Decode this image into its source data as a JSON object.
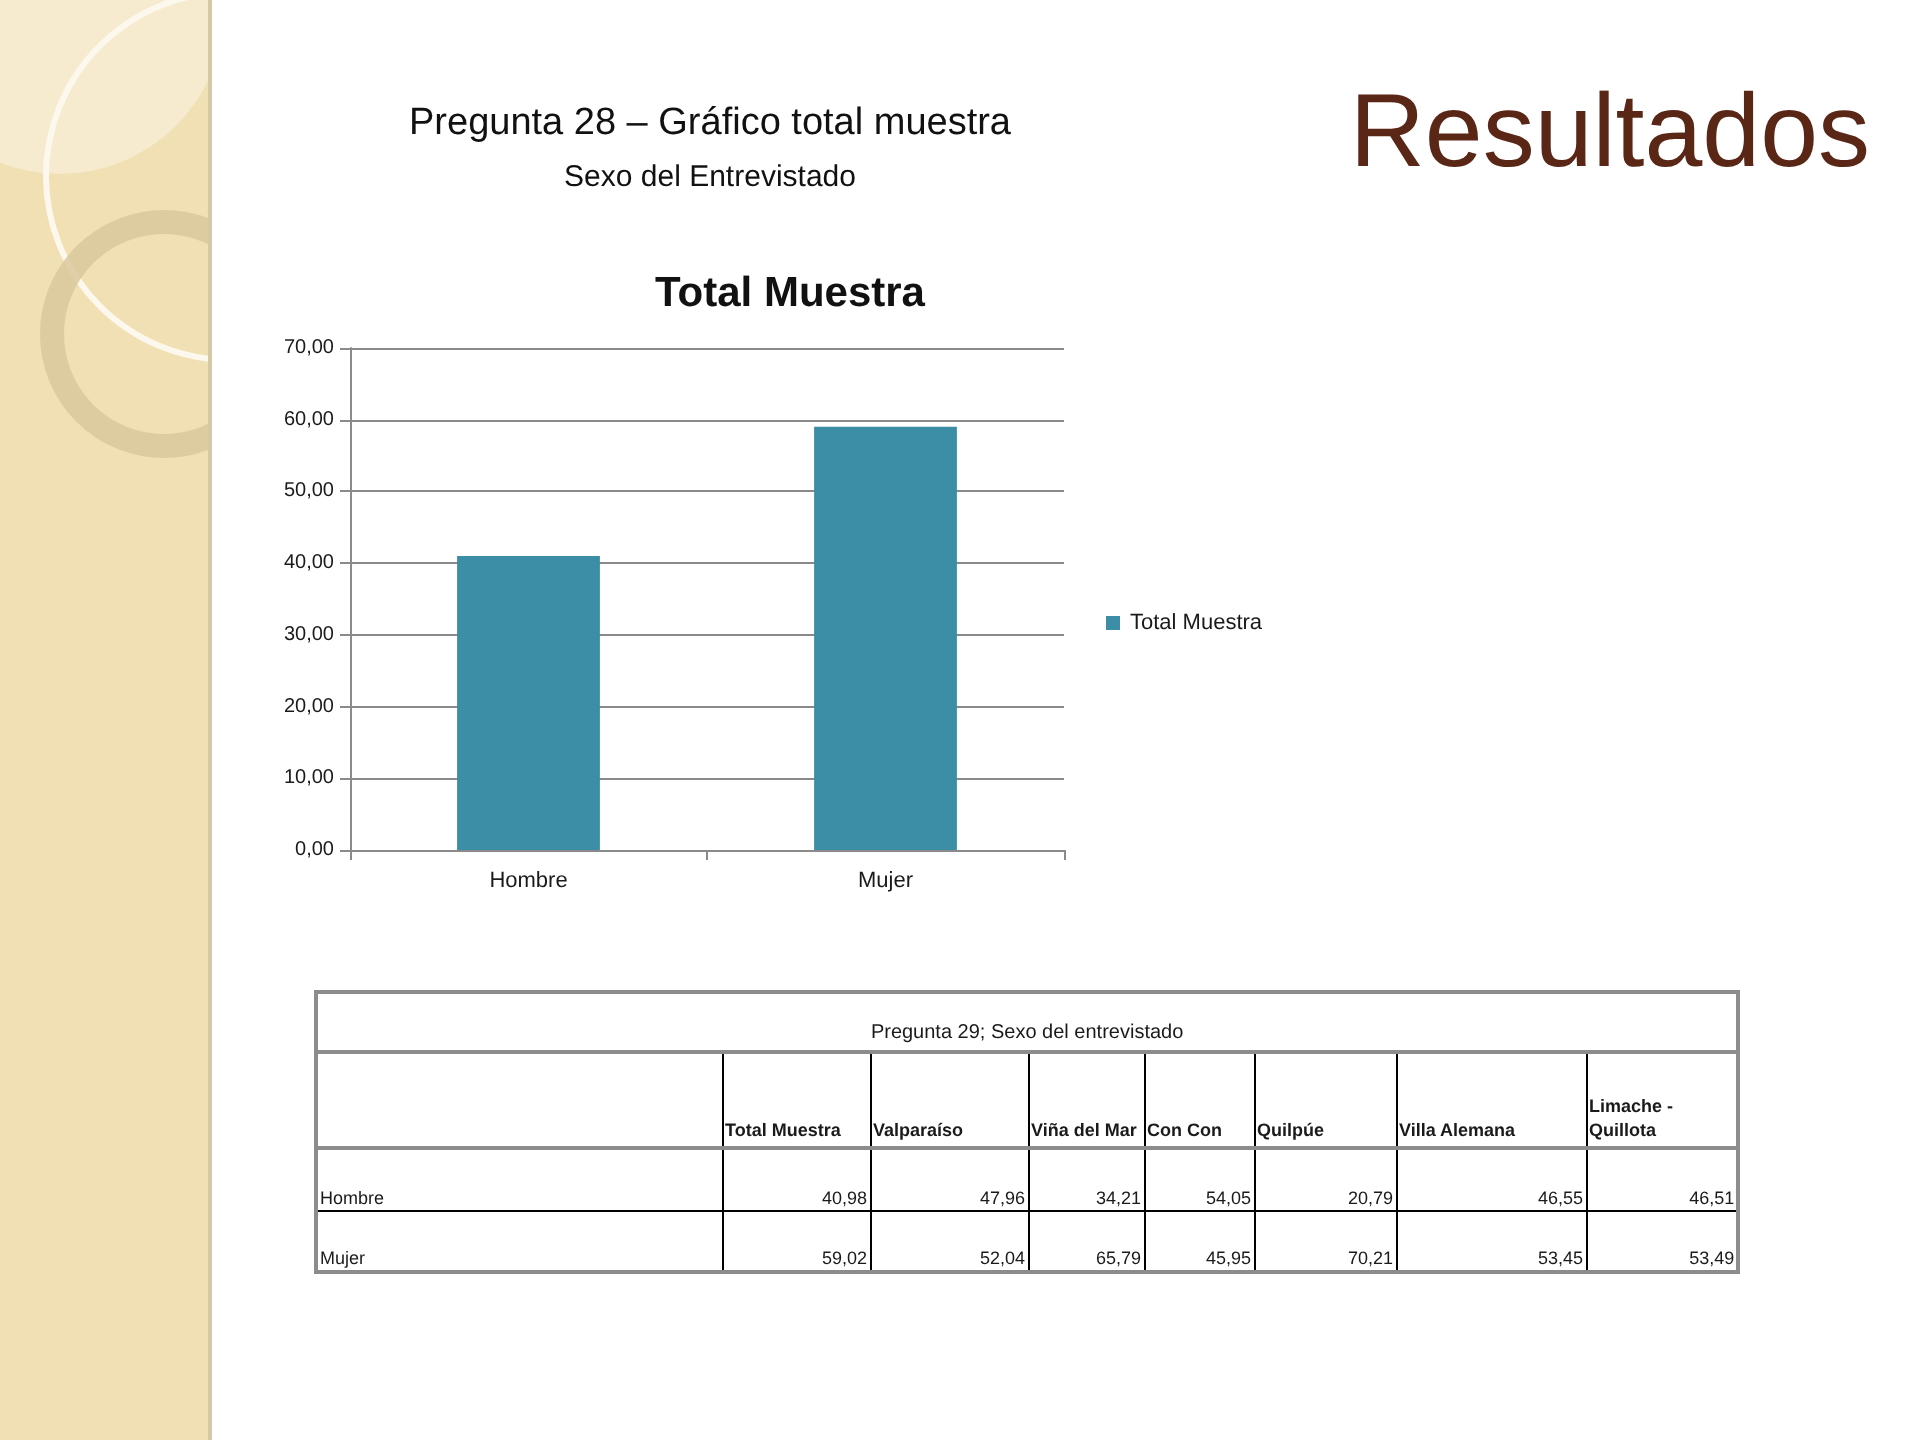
{
  "chart_data": [
    {
      "type": "bar",
      "title": "Total Muestra",
      "annotations": [
        "Resultados",
        "Pregunta 28 – Gráfico total muestra",
        "Sexo del Entrevistado"
      ],
      "categories": [
        "Hombre",
        "Mujer"
      ],
      "series": [
        {
          "name": "Total Muestra",
          "color": "#3b8ea5",
          "values": [
            40.98,
            59.02
          ]
        }
      ],
      "ylim": [
        0,
        70
      ],
      "yticks": [
        {
          "value": 0,
          "label": "0,00"
        },
        {
          "value": 10,
          "label": "10,00"
        },
        {
          "value": 20,
          "label": "20,00"
        },
        {
          "value": 30,
          "label": "30,00"
        },
        {
          "value": 40,
          "label": "40,00"
        },
        {
          "value": 50,
          "label": "50,00"
        },
        {
          "value": 60,
          "label": "60,00"
        },
        {
          "value": 70,
          "label": "70,00"
        }
      ],
      "grid": "y",
      "legend": "right"
    },
    {
      "type": "other",
      "title": "Pregunta 29; Sexo del entrevistado",
      "categories": [
        "Total Muestra",
        "Valparaíso",
        "Viña del Mar",
        "Con Con",
        "Quilpúe",
        "Villa Alemana",
        "Limache - Quillota"
      ],
      "y_categories": [
        "Hombre",
        "Mujer"
      ],
      "cell_labels": [
        [
          "40,98",
          "47,96",
          "34,21",
          "54,05",
          "20,79",
          "46,55",
          "46,51"
        ],
        [
          "59,02",
          "52,04",
          "65,79",
          "45,95",
          "70,21",
          "53,45",
          "53,49"
        ]
      ]
    }
  ]
}
